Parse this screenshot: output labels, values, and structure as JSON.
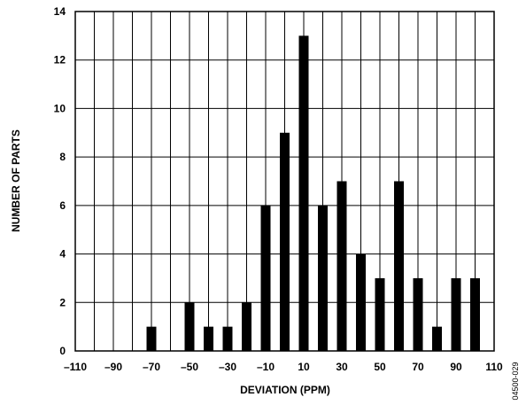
{
  "chart_data": {
    "type": "bar",
    "xlabel": "DEVIATION (PPM)",
    "ylabel": "NUMBER OF PARTS",
    "xlim": [
      -110,
      110
    ],
    "ylim": [
      0,
      14
    ],
    "x_ticks": [
      -110,
      -90,
      -70,
      -50,
      -30,
      -10,
      10,
      30,
      50,
      70,
      90,
      110
    ],
    "x_tick_labels": [
      "–110",
      "–90",
      "–70",
      "–50",
      "–30",
      "–10",
      "10",
      "30",
      "50",
      "70",
      "90",
      "110"
    ],
    "y_ticks": [
      0,
      2,
      4,
      6,
      8,
      10,
      12,
      14
    ],
    "y_tick_labels": [
      "0",
      "2",
      "4",
      "6",
      "8",
      "10",
      "12",
      "14"
    ],
    "grid": true,
    "grid_x_step": 10,
    "grid_y_step": 2,
    "bar_color": "#000000",
    "x": [
      -70,
      -50,
      -40,
      -30,
      -20,
      -10,
      0,
      10,
      20,
      30,
      40,
      50,
      60,
      70,
      80,
      90,
      100
    ],
    "values": [
      1,
      2,
      1,
      1,
      2,
      6,
      9,
      13,
      6,
      7,
      4,
      3,
      7,
      3,
      1,
      3,
      3
    ]
  },
  "figure_id": "04500-029"
}
